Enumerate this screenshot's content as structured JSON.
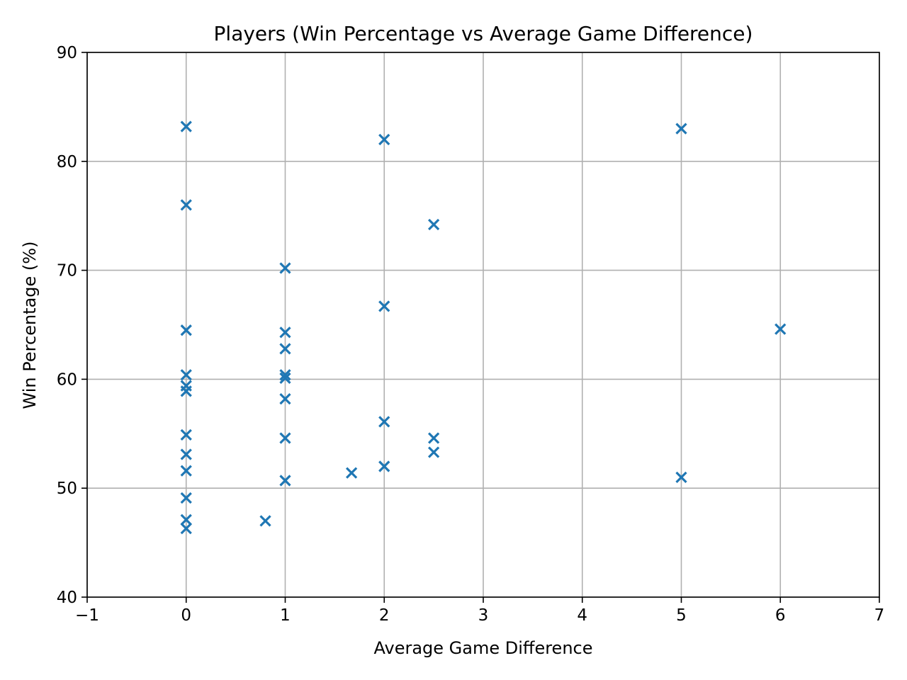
{
  "chart_data": {
    "type": "scatter",
    "title": "Players (Win Percentage vs Average Game Difference)",
    "xlabel": "Average Game Difference",
    "ylabel": "Win Percentage (%)",
    "xlim": [
      -1,
      7
    ],
    "ylim": [
      40,
      90
    ],
    "xticks": [
      -1,
      0,
      1,
      2,
      3,
      4,
      5,
      6,
      7
    ],
    "xtick_labels": [
      "−1",
      "0",
      "1",
      "2",
      "3",
      "4",
      "5",
      "6",
      "7"
    ],
    "yticks": [
      40,
      50,
      60,
      70,
      80,
      90
    ],
    "ytick_labels": [
      "40",
      "50",
      "60",
      "70",
      "80",
      "90"
    ],
    "grid": true,
    "marker": "x",
    "color": "#1f77b4",
    "points": [
      {
        "x": 0,
        "y": 83.2
      },
      {
        "x": 0,
        "y": 76.0
      },
      {
        "x": 0,
        "y": 64.5
      },
      {
        "x": 0,
        "y": 60.4
      },
      {
        "x": 0,
        "y": 59.4
      },
      {
        "x": 0,
        "y": 58.9
      },
      {
        "x": 0,
        "y": 54.9
      },
      {
        "x": 0,
        "y": 53.1
      },
      {
        "x": 0,
        "y": 51.6
      },
      {
        "x": 0,
        "y": 49.1
      },
      {
        "x": 0,
        "y": 47.1
      },
      {
        "x": 0,
        "y": 46.3
      },
      {
        "x": 0.8,
        "y": 47.0
      },
      {
        "x": 1,
        "y": 70.2
      },
      {
        "x": 1,
        "y": 64.3
      },
      {
        "x": 1,
        "y": 62.8
      },
      {
        "x": 1,
        "y": 60.4
      },
      {
        "x": 1,
        "y": 60.1
      },
      {
        "x": 1,
        "y": 58.2
      },
      {
        "x": 1,
        "y": 54.6
      },
      {
        "x": 1,
        "y": 50.7
      },
      {
        "x": 1.67,
        "y": 51.4
      },
      {
        "x": 2,
        "y": 82.0
      },
      {
        "x": 2,
        "y": 66.7
      },
      {
        "x": 2,
        "y": 56.1
      },
      {
        "x": 2,
        "y": 52.0
      },
      {
        "x": 2.5,
        "y": 74.2
      },
      {
        "x": 2.5,
        "y": 54.6
      },
      {
        "x": 2.5,
        "y": 53.3
      },
      {
        "x": 5,
        "y": 83.0
      },
      {
        "x": 5,
        "y": 51.0
      },
      {
        "x": 6,
        "y": 64.6
      }
    ]
  }
}
